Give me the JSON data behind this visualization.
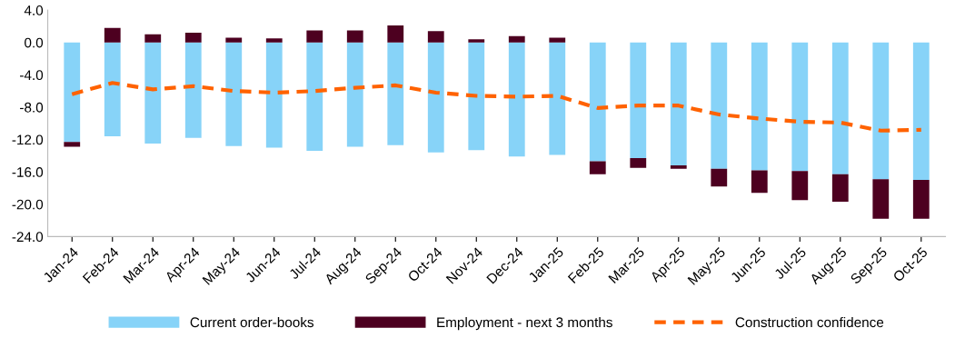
{
  "chart_data": {
    "type": "bar",
    "stacked": true,
    "categories": [
      "Jan-24",
      "Feb-24",
      "Mar-24",
      "Apr-24",
      "May-24",
      "Jun-24",
      "Jul-24",
      "Aug-24",
      "Sep-24",
      "Oct-24",
      "Nov-24",
      "Dec-24",
      "Jan-25",
      "Feb-25",
      "Mar-25",
      "Apr-25",
      "May-25",
      "Jun-25",
      "Jul-25",
      "Aug-25",
      "Sep-25",
      "Oct-25"
    ],
    "series": [
      {
        "name": "Current order-books",
        "color": "#87d3f8",
        "values": [
          -12.3,
          -11.6,
          -12.5,
          -11.8,
          -12.8,
          -13.0,
          -13.4,
          -12.9,
          -12.7,
          -13.6,
          -13.3,
          -14.1,
          -13.9,
          -14.7,
          -14.3,
          -15.2,
          -15.6,
          -15.8,
          -15.9,
          -16.3,
          -16.9,
          -17.0
        ]
      },
      {
        "name": "Employment - next 3 months",
        "color": "#4d0020",
        "values": [
          -0.6,
          1.8,
          1.0,
          1.2,
          0.6,
          0.5,
          1.5,
          1.5,
          2.1,
          1.4,
          0.4,
          0.8,
          0.6,
          -1.6,
          -1.2,
          -0.4,
          -2.2,
          -2.8,
          -3.6,
          -3.4,
          -4.9,
          -4.8
        ]
      },
      {
        "name": "Construction confidence",
        "type": "line",
        "color": "#ff6200",
        "line_style": "dashed",
        "values": [
          -6.4,
          -5.0,
          -5.8,
          -5.4,
          -6.0,
          -6.2,
          -6.0,
          -5.6,
          -5.3,
          -6.2,
          -6.6,
          -6.7,
          -6.6,
          -8.1,
          -7.8,
          -7.8,
          -8.9,
          -9.4,
          -9.8,
          -9.9,
          -10.9,
          -10.8
        ]
      }
    ],
    "ylim": [
      -24,
      4
    ],
    "yticks": [
      {
        "value": -24,
        "label": "-24.0"
      },
      {
        "value": -20,
        "label": "-20.0"
      },
      {
        "value": -16,
        "label": "-16.0"
      },
      {
        "value": -12,
        "label": "-12.0"
      },
      {
        "value": -8,
        "label": "-8.0"
      },
      {
        "value": -4,
        "label": "-4.0"
      },
      {
        "value": 0,
        "label": "0.0"
      },
      {
        "value": 4,
        "label": "4.0"
      }
    ],
    "grid": false,
    "legend": "bottom"
  }
}
